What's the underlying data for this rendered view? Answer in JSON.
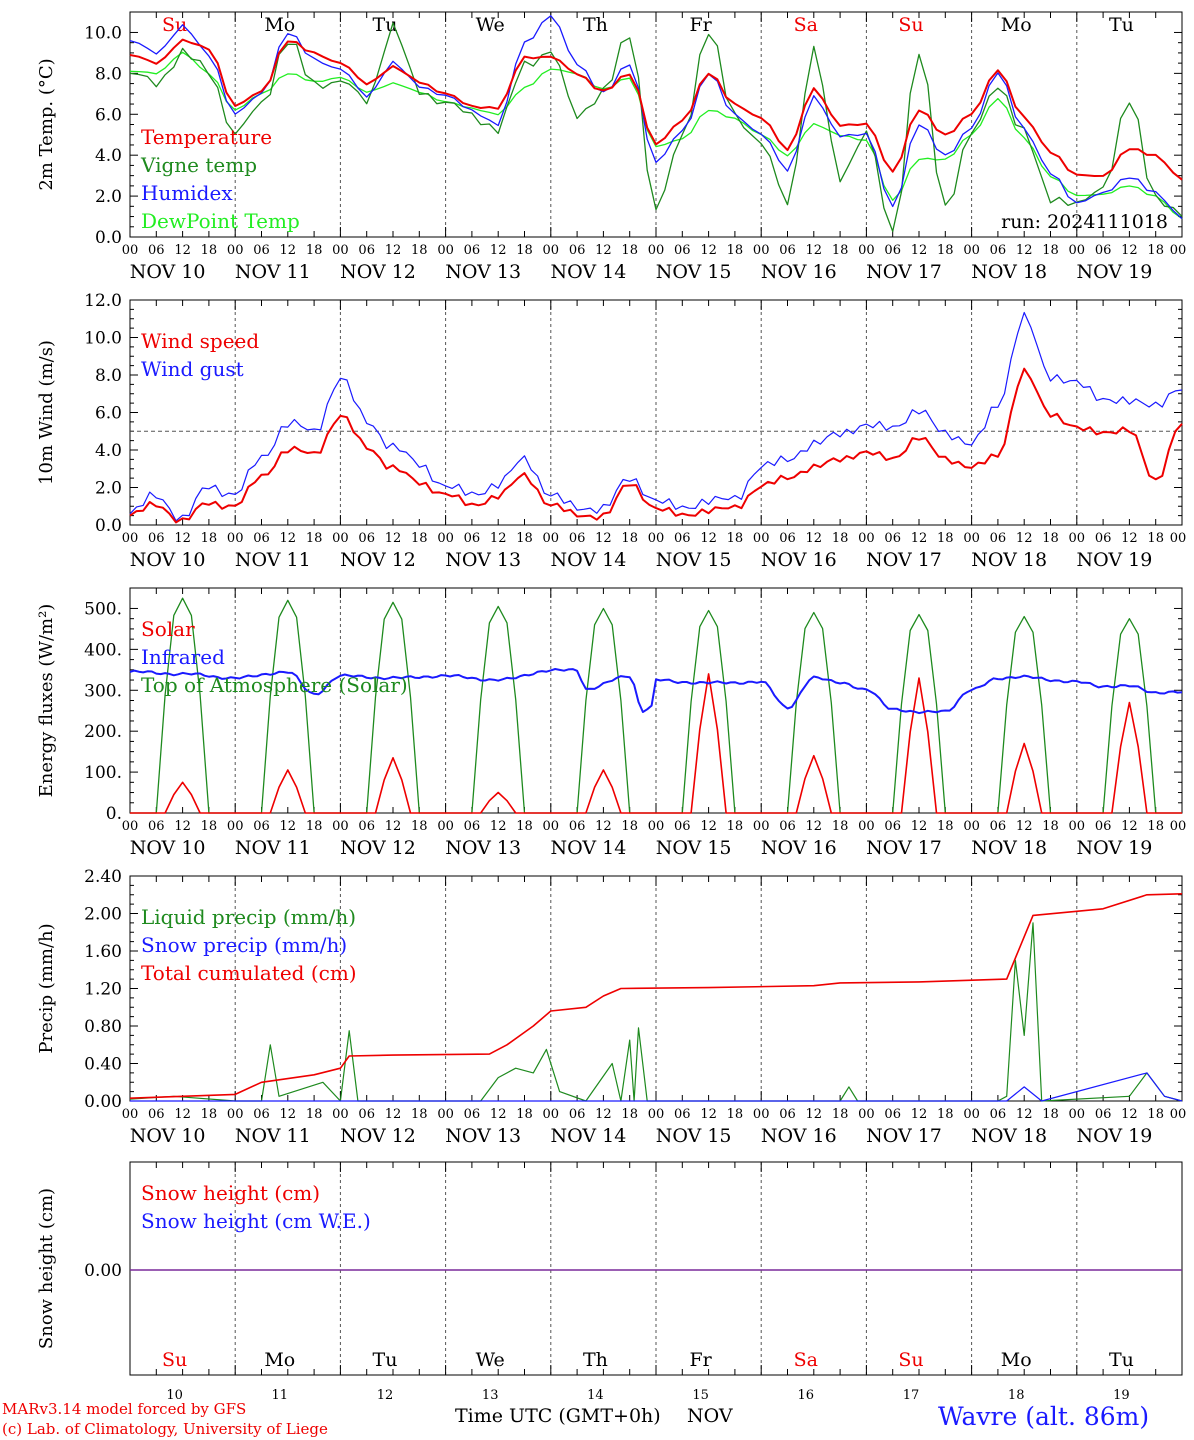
{
  "colors": {
    "red": "#ee0000",
    "green": "#1e8a1e",
    "blue": "#1a1aff",
    "lightgreen": "#22ee22",
    "purple": "#7a2a9a",
    "grid": "#555555",
    "axis": "#000000"
  },
  "days": {
    "short": [
      "Su",
      "Mo",
      "Tu",
      "We",
      "Th",
      "Fr",
      "Sa",
      "Su",
      "Mo",
      "Tu"
    ],
    "weekend": [
      true,
      false,
      false,
      false,
      false,
      false,
      true,
      true,
      false,
      false
    ],
    "dates": [
      "NOV 10",
      "NOV 11",
      "NOV 12",
      "NOV 13",
      "NOV 14",
      "NOV 15",
      "NOV 16",
      "NOV 17",
      "NOV 18",
      "NOV 19"
    ],
    "numbers": [
      "10",
      "11",
      "12",
      "13",
      "14",
      "15",
      "16",
      "17",
      "18",
      "19"
    ]
  },
  "hour_ticks": [
    "00",
    "06",
    "12",
    "18"
  ],
  "hour_end": "00",
  "footer": {
    "model": "MARv3.14 model forced by GFS",
    "lab": "(c) Lab. of Climatology, University of Liege",
    "xtitle": "Time UTC (GMT+0h)",
    "month": "NOV",
    "station": "Wavre (alt. 86m)"
  },
  "chart_data": [
    {
      "type": "line",
      "ylabel": "2m Temp. (°C)",
      "ylim": [
        0,
        11
      ],
      "yticks": [
        "0.0",
        "2.0",
        "4.0",
        "6.0",
        "8.0",
        "10.0"
      ],
      "yticks_values": [
        0,
        2,
        4,
        6,
        8,
        10
      ],
      "annotation": "run: 2024111018",
      "x_hours": [
        0,
        6,
        12,
        18,
        24,
        30,
        36,
        42,
        48,
        54,
        60,
        66,
        72,
        78,
        84,
        90,
        96,
        102,
        108,
        114,
        120,
        126,
        132,
        138,
        144,
        150,
        156,
        162,
        168,
        174,
        180,
        186,
        192,
        198,
        204,
        210,
        216,
        222,
        228,
        234,
        240
      ],
      "series": [
        {
          "name": "Temperature",
          "color": "red",
          "values": [
            8.9,
            8.5,
            9.6,
            9.2,
            6.4,
            7.1,
            9.6,
            9.0,
            8.5,
            7.5,
            8.3,
            7.6,
            7.0,
            6.4,
            6.3,
            8.8,
            8.8,
            8.0,
            7.1,
            8.0,
            4.5,
            5.7,
            8.0,
            6.5,
            5.8,
            4.3,
            7.2,
            5.5,
            5.5,
            3.2,
            6.2,
            5.0,
            6.0,
            8.2,
            5.8,
            4.2,
            3.0,
            3.0,
            4.3,
            4.0,
            2.8
          ]
        },
        {
          "name": "Vigne temp",
          "color": "green",
          "values": [
            8.0,
            7.5,
            9.0,
            8.1,
            5.0,
            6.5,
            9.6,
            7.5,
            7.6,
            6.7,
            10.2,
            7.2,
            6.5,
            6.0,
            5.2,
            8.5,
            9.0,
            6.0,
            7.0,
            10.0,
            1.2,
            5.0,
            10.0,
            6.0,
            4.5,
            1.8,
            9.0,
            3.0,
            5.0,
            0.3,
            9.0,
            1.5,
            5.0,
            7.5,
            5.0,
            2.0,
            1.5,
            2.5,
            6.6,
            2.0,
            1.0
          ]
        },
        {
          "name": "Humidex",
          "color": "blue",
          "values": [
            9.6,
            9.0,
            10.3,
            8.9,
            6.0,
            7.0,
            10.0,
            8.7,
            8.2,
            6.9,
            8.5,
            7.4,
            6.9,
            6.2,
            5.5,
            9.5,
            10.8,
            8.5,
            7.0,
            8.5,
            3.6,
            5.2,
            8.0,
            6.0,
            5.0,
            3.3,
            6.8,
            5.0,
            5.0,
            1.5,
            5.5,
            4.0,
            5.3,
            8.1,
            5.2,
            3.2,
            1.6,
            2.2,
            2.9,
            2.2,
            0.9
          ]
        },
        {
          "name": "DewPoint Temp",
          "color": "lightgreen",
          "values": [
            8.1,
            8.0,
            9.0,
            8.0,
            6.2,
            7.0,
            8.0,
            7.6,
            7.8,
            7.1,
            7.5,
            7.1,
            6.6,
            6.3,
            6.0,
            7.3,
            8.2,
            8.0,
            7.2,
            7.8,
            4.4,
            4.8,
            6.2,
            5.8,
            5.0,
            4.0,
            5.5,
            5.0,
            4.7,
            1.8,
            3.8,
            3.8,
            5.0,
            6.8,
            4.8,
            3.0,
            2.0,
            2.1,
            2.5,
            2.0,
            0.9
          ]
        }
      ]
    },
    {
      "type": "line",
      "ylabel": "10m Wind (m/s)",
      "ylim": [
        0,
        12
      ],
      "yticks": [
        "0.0",
        "2.0",
        "4.0",
        "6.0",
        "8.0",
        "10.0",
        "12.0"
      ],
      "yticks_values": [
        0,
        2,
        4,
        6,
        8,
        10,
        12
      ],
      "reference_line": 5.0,
      "x_hours": [
        0,
        6,
        12,
        18,
        24,
        30,
        36,
        42,
        48,
        54,
        60,
        66,
        72,
        78,
        84,
        90,
        96,
        102,
        108,
        114,
        120,
        126,
        132,
        138,
        144,
        150,
        156,
        162,
        168,
        174,
        180,
        186,
        192,
        198,
        204,
        210,
        216,
        222,
        228,
        234,
        240
      ],
      "series": [
        {
          "name": "Wind speed",
          "color": "red",
          "values": [
            0.5,
            1.1,
            0.2,
            1.2,
            1.0,
            2.6,
            4.0,
            3.8,
            5.8,
            4.2,
            3.0,
            2.3,
            1.6,
            1.1,
            1.5,
            2.7,
            1.0,
            0.6,
            0.4,
            2.3,
            0.8,
            0.6,
            0.7,
            1.0,
            2.0,
            2.6,
            3.0,
            3.6,
            3.8,
            3.6,
            4.6,
            3.6,
            3.0,
            3.8,
            8.1,
            6.0,
            5.1,
            5.0,
            5.0,
            2.4,
            5.4
          ]
        },
        {
          "name": "Wind gust",
          "color": "blue",
          "values": [
            0.6,
            1.6,
            0.3,
            2.1,
            1.6,
            3.6,
            5.4,
            5.0,
            7.8,
            5.6,
            4.1,
            3.3,
            2.0,
            1.7,
            2.1,
            3.6,
            1.5,
            1.0,
            0.8,
            2.6,
            1.2,
            1.0,
            1.2,
            1.5,
            3.0,
            3.6,
            4.2,
            5.0,
            5.2,
            5.3,
            6.0,
            5.0,
            4.2,
            6.5,
            11.0,
            8.0,
            7.5,
            6.8,
            6.5,
            6.5,
            7.2
          ]
        }
      ]
    },
    {
      "type": "line",
      "ylabel": "Energy fluxes (W/m²)",
      "ylim": [
        0,
        550
      ],
      "yticks": [
        "0.",
        "100.",
        "200.",
        "300.",
        "400.",
        "500."
      ],
      "yticks_values": [
        0,
        100,
        200,
        300,
        400,
        500
      ],
      "solar_day_peaks": [
        75,
        105,
        135,
        50,
        105,
        340,
        140,
        330,
        170,
        270
      ],
      "toa_day_peaks": [
        525,
        520,
        515,
        505,
        500,
        495,
        490,
        485,
        480,
        475
      ],
      "infrared_hours": [
        0,
        12,
        24,
        36,
        42,
        48,
        60,
        72,
        84,
        96,
        102,
        104,
        114,
        117,
        119,
        120,
        126,
        132,
        144,
        150,
        156,
        162,
        168,
        174,
        180,
        186,
        192,
        198,
        204,
        216,
        222,
        228,
        234,
        240
      ],
      "infrared_values": [
        345,
        340,
        330,
        345,
        290,
        335,
        330,
        335,
        325,
        348,
        350,
        303,
        335,
        250,
        260,
        325,
        320,
        318,
        320,
        258,
        330,
        320,
        300,
        255,
        245,
        250,
        300,
        330,
        332,
        320,
        310,
        310,
        295,
        295
      ],
      "series": [
        {
          "name": "Solar",
          "color": "red"
        },
        {
          "name": "Infrared",
          "color": "blue"
        },
        {
          "name": "Top of Atmosphere (Solar)",
          "color": "green"
        }
      ]
    },
    {
      "type": "line",
      "ylabel": "Precip (mm/h)",
      "ylim": [
        0,
        2.4
      ],
      "yticks": [
        "0.00",
        "0.40",
        "0.80",
        "1.20",
        "1.60",
        "2.00",
        "2.40"
      ],
      "yticks_values": [
        0,
        0.4,
        0.8,
        1.2,
        1.6,
        2.0,
        2.4
      ],
      "x_hours": [
        0,
        12,
        24,
        30,
        36,
        42,
        48,
        54,
        60,
        72,
        84,
        90,
        96,
        102,
        108,
        114,
        120,
        132,
        144,
        156,
        168,
        180,
        192,
        198,
        204,
        210,
        216,
        228,
        234,
        240
      ],
      "series": [
        {
          "name": "Liquid precip (mm/h)",
          "color": "green",
          "points": [
            [
              0,
              0.02
            ],
            [
              10,
              0.05
            ],
            [
              24,
              0.0
            ],
            [
              30,
              0.0
            ],
            [
              32,
              0.6
            ],
            [
              34,
              0.05
            ],
            [
              44,
              0.2
            ],
            [
              48,
              0.0
            ],
            [
              50,
              0.75
            ],
            [
              52,
              0.0
            ],
            [
              80,
              0.0
            ],
            [
              84,
              0.25
            ],
            [
              88,
              0.35
            ],
            [
              92,
              0.3
            ],
            [
              95,
              0.55
            ],
            [
              98,
              0.1
            ],
            [
              104,
              0.0
            ],
            [
              110,
              0.4
            ],
            [
              112,
              0.0
            ],
            [
              114,
              0.65
            ],
            [
              115,
              0.0
            ],
            [
              116,
              0.78
            ],
            [
              118,
              0.0
            ],
            [
              162,
              0.0
            ],
            [
              164,
              0.15
            ],
            [
              166,
              0.0
            ],
            [
              198,
              0.0
            ],
            [
              200,
              0.05
            ],
            [
              202,
              1.5
            ],
            [
              204,
              0.7
            ],
            [
              206,
              1.9
            ],
            [
              208,
              0.0
            ],
            [
              228,
              0.05
            ],
            [
              232,
              0.3
            ],
            [
              236,
              0.05
            ],
            [
              240,
              0.0
            ]
          ]
        },
        {
          "name": "Snow precip (mm/h)",
          "color": "blue",
          "points": [
            [
              0,
              0.0
            ],
            [
              200,
              0.0
            ],
            [
              204,
              0.15
            ],
            [
              208,
              0.0
            ],
            [
              232,
              0.3
            ],
            [
              236,
              0.05
            ],
            [
              240,
              0.0
            ]
          ]
        },
        {
          "name": "Total cumulated (cm)",
          "color": "red",
          "points": [
            [
              0,
              0.03
            ],
            [
              24,
              0.07
            ],
            [
              30,
              0.2
            ],
            [
              42,
              0.28
            ],
            [
              48,
              0.35
            ],
            [
              50,
              0.48
            ],
            [
              60,
              0.49
            ],
            [
              82,
              0.5
            ],
            [
              86,
              0.6
            ],
            [
              92,
              0.8
            ],
            [
              96,
              0.96
            ],
            [
              104,
              1.0
            ],
            [
              108,
              1.12
            ],
            [
              112,
              1.2
            ],
            [
              132,
              1.21
            ],
            [
              156,
              1.23
            ],
            [
              162,
              1.26
            ],
            [
              180,
              1.27
            ],
            [
              200,
              1.3
            ],
            [
              206,
              1.98
            ],
            [
              222,
              2.05
            ],
            [
              232,
              2.2
            ],
            [
              240,
              2.21
            ]
          ]
        }
      ]
    },
    {
      "type": "line",
      "ylabel": "Snow height (cm)",
      "yticks": [
        "0.00"
      ],
      "yticks_values": [
        0
      ],
      "series": [
        {
          "name": "Snow height (cm)",
          "color": "red",
          "values": [
            0,
            0
          ]
        },
        {
          "name": "Snow height (cm W.E.)",
          "color": "blue",
          "values": [
            0,
            0
          ]
        }
      ]
    }
  ]
}
